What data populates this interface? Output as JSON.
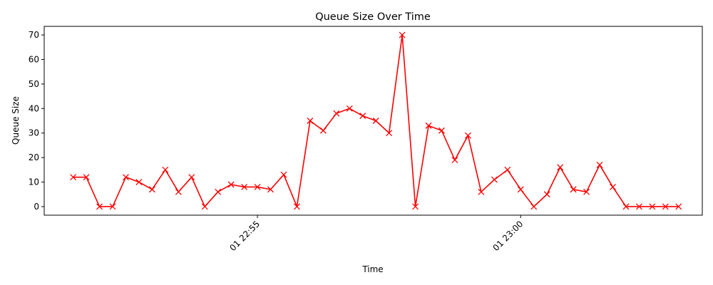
{
  "chart_data": {
    "type": "line",
    "title": "Queue Size Over Time",
    "xlabel": "Time",
    "ylabel": "Queue Size",
    "ylim": [
      -3.5,
      73.5
    ],
    "yticks": [
      0,
      10,
      20,
      30,
      40,
      50,
      60,
      70
    ],
    "xlim": [
      "01 22:50:57",
      "01 23:03:27"
    ],
    "xticks": [
      {
        "time": "01 22:55",
        "label": "01 22:55"
      },
      {
        "time": "01 23:00",
        "label": "01 23:00"
      }
    ],
    "grid": false,
    "legend": "none",
    "series": [
      {
        "color": "#ff0000",
        "marker": "x",
        "x": [
          "01 22:51:30",
          "01 22:51:45",
          "01 22:52:00",
          "01 22:52:15",
          "01 22:52:30",
          "01 22:52:45",
          "01 22:53:00",
          "01 22:53:15",
          "01 22:53:30",
          "01 22:53:45",
          "01 22:54:00",
          "01 22:54:15",
          "01 22:54:30",
          "01 22:54:45",
          "01 22:55:00",
          "01 22:55:15",
          "01 22:55:30",
          "01 22:55:45",
          "01 22:56:00",
          "01 22:56:15",
          "01 22:56:30",
          "01 22:56:45",
          "01 22:57:00",
          "01 22:57:15",
          "01 22:57:30",
          "01 22:57:45",
          "01 22:58:00",
          "01 22:58:15",
          "01 22:58:30",
          "01 22:58:45",
          "01 22:59:00",
          "01 22:59:15",
          "01 22:59:30",
          "01 22:59:45",
          "01 23:00:00",
          "01 23:00:15",
          "01 23:00:30",
          "01 23:00:45",
          "01 23:01:00",
          "01 23:01:15",
          "01 23:01:30",
          "01 23:01:45",
          "01 23:02:00",
          "01 23:02:15",
          "01 23:02:30",
          "01 23:02:45",
          "01 23:03:00"
        ],
        "values": [
          12,
          12,
          0,
          0,
          12,
          10,
          7,
          15,
          6,
          12,
          0,
          6,
          9,
          8,
          8,
          7,
          13,
          0,
          35,
          31,
          38,
          40,
          37,
          35,
          30,
          70,
          0,
          33,
          31,
          19,
          29,
          6,
          11,
          15,
          7,
          0,
          5,
          16,
          7,
          6,
          17,
          8,
          0,
          0,
          0,
          0,
          0
        ]
      }
    ]
  }
}
